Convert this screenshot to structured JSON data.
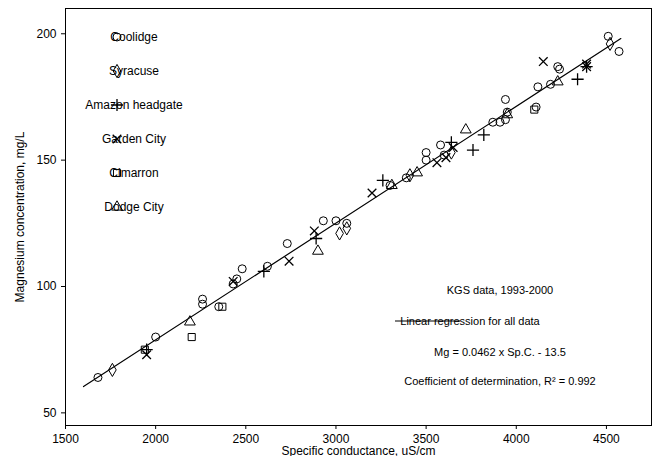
{
  "chart_data": {
    "type": "scatter",
    "x_label": "Specific conductance, uS/cm",
    "y_label": "Magnesium concentration, mg/L",
    "xlim": [
      1500,
      4750
    ],
    "ylim": [
      45,
      210
    ],
    "xticks": [
      1500,
      2000,
      2500,
      3000,
      3500,
      4000,
      4500
    ],
    "yticks": [
      50,
      100,
      150,
      200
    ],
    "grid": false,
    "legend": "top-left",
    "annotations": [
      "KGS data, 1993-2000",
      "Mg = 0.0462 x Sp.C. - 13.5",
      "Coefficient of determination, R² = 0.992"
    ],
    "series": [
      {
        "name": "Coolidge",
        "type": "scatter",
        "marker": "circle",
        "color": "#000000",
        "x": [
          1680,
          2000,
          2260,
          2260,
          2350,
          2430,
          2450,
          2480,
          2620,
          2730,
          2930,
          3000,
          3060,
          3300,
          3390,
          3500,
          3500,
          3580,
          3600,
          3870,
          3910,
          3940,
          3940,
          3950,
          4110,
          4120,
          4190,
          4230,
          4240,
          4510,
          4570
        ],
        "values": [
          64,
          80,
          95,
          93,
          92,
          101,
          103,
          107,
          108,
          117,
          126,
          126,
          125,
          140,
          143,
          150,
          153,
          156,
          152,
          165,
          165,
          174,
          166,
          169,
          171,
          179,
          180,
          187,
          186,
          199,
          193
        ]
      },
      {
        "name": "Syracuse",
        "type": "scatter",
        "marker": "diamond",
        "color": "#000000",
        "x": [
          1760,
          3020,
          3060,
          3410,
          3640,
          4520
        ],
        "values": [
          67,
          121,
          123,
          144,
          153,
          196
        ]
      },
      {
        "name": "Amazon headgate",
        "type": "scatter",
        "marker": "plus",
        "color": "#000000",
        "x": [
          1950,
          2600,
          2890,
          3260,
          3640,
          3760,
          3820,
          4340,
          4390
        ],
        "values": [
          75,
          106,
          119,
          142,
          157,
          154,
          160,
          182,
          187
        ]
      },
      {
        "name": "Garden City",
        "type": "scatter",
        "marker": "times",
        "color": "#000000",
        "x": [
          1950,
          2430,
          2740,
          2880,
          3200,
          3560,
          3610,
          3650,
          4150,
          4390,
          4390
        ],
        "values": [
          73,
          102,
          110,
          122,
          137,
          149,
          151,
          155,
          189,
          187,
          188
        ]
      },
      {
        "name": "Cimarron",
        "type": "scatter",
        "marker": "square",
        "color": "#000000",
        "x": [
          1940,
          2200,
          2370,
          4100
        ],
        "values": [
          75,
          80,
          92,
          170
        ]
      },
      {
        "name": "Dodge City",
        "type": "scatter",
        "marker": "triangle",
        "color": "#000000",
        "x": [
          2190,
          2900,
          3310,
          3450,
          3720,
          3950,
          4230
        ],
        "values": [
          86,
          114,
          140,
          145,
          162,
          168,
          181
        ]
      },
      {
        "name": "Linear regression for all data",
        "type": "line",
        "line_style": "solid",
        "color": "#000000",
        "x": [
          1600,
          4580
        ],
        "values": [
          60.4,
          198.1
        ]
      }
    ]
  }
}
